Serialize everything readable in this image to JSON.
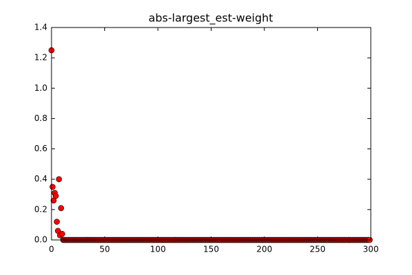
{
  "chart_data": {
    "type": "scatter",
    "title": "abs-largest_est-weight",
    "x": [
      0,
      1,
      2,
      3,
      4,
      5,
      6,
      7,
      8,
      9,
      10,
      11,
      12,
      13,
      14,
      15,
      16,
      17,
      18,
      19,
      20,
      21,
      22,
      23,
      24,
      25,
      26,
      27,
      28,
      29,
      30,
      31,
      32,
      33,
      34,
      35,
      36,
      37,
      38,
      39,
      40,
      41,
      42,
      43,
      44,
      45,
      46,
      47,
      48,
      49,
      50,
      51,
      52,
      53,
      54,
      55,
      56,
      57,
      58,
      59,
      60,
      61,
      62,
      63,
      64,
      65,
      66,
      67,
      68,
      69,
      70,
      71,
      72,
      73,
      74,
      75,
      76,
      77,
      78,
      79,
      80,
      81,
      82,
      83,
      84,
      85,
      86,
      87,
      88,
      89,
      90,
      91,
      92,
      93,
      94,
      95,
      96,
      97,
      98,
      99,
      100,
      101,
      102,
      103,
      104,
      105,
      106,
      107,
      108,
      109,
      110,
      111,
      112,
      113,
      114,
      115,
      116,
      117,
      118,
      119,
      120,
      121,
      122,
      123,
      124,
      125,
      126,
      127,
      128,
      129,
      130,
      131,
      132,
      133,
      134,
      135,
      136,
      137,
      138,
      139,
      140,
      141,
      142,
      143,
      144,
      145,
      146,
      147,
      148,
      149,
      150,
      151,
      152,
      153,
      154,
      155,
      156,
      157,
      158,
      159,
      160,
      161,
      162,
      163,
      164,
      165,
      166,
      167,
      168,
      169,
      170,
      171,
      172,
      173,
      174,
      175,
      176,
      177,
      178,
      179,
      180,
      181,
      182,
      183,
      184,
      185,
      186,
      187,
      188,
      189,
      190,
      191,
      192,
      193,
      194,
      195,
      196,
      197,
      198,
      199,
      200,
      201,
      202,
      203,
      204,
      205,
      206,
      207,
      208,
      209,
      210,
      211,
      212,
      213,
      214,
      215,
      216,
      217,
      218,
      219,
      220,
      221,
      222,
      223,
      224,
      225,
      226,
      227,
      228,
      229,
      230,
      231,
      232,
      233,
      234,
      235,
      236,
      237,
      238,
      239,
      240,
      241,
      242,
      243,
      244,
      245,
      246,
      247,
      248,
      249,
      250,
      251,
      252,
      253,
      254,
      255,
      256,
      257,
      258,
      259,
      260,
      261,
      262,
      263,
      264,
      265,
      266,
      267,
      268,
      269,
      270,
      271,
      272,
      273,
      274,
      275,
      276,
      277,
      278,
      279,
      280,
      281,
      282,
      283,
      284,
      285,
      286,
      287,
      288,
      289,
      290,
      291,
      292,
      293,
      294,
      295,
      296,
      297,
      298,
      299
    ],
    "values": [
      1.25,
      0.35,
      0.26,
      0.31,
      0.29,
      0.12,
      0.06,
      0.4,
      0.03,
      0.21,
      0.04,
      0,
      0,
      0,
      0,
      0,
      0,
      0,
      0,
      0,
      0,
      0,
      0,
      0,
      0,
      0,
      0,
      0,
      0,
      0,
      0,
      0,
      0,
      0,
      0,
      0,
      0,
      0,
      0,
      0,
      0,
      0,
      0,
      0,
      0,
      0,
      0,
      0,
      0,
      0,
      0,
      0,
      0,
      0,
      0,
      0,
      0,
      0,
      0,
      0,
      0,
      0,
      0,
      0,
      0,
      0,
      0,
      0,
      0,
      0,
      0,
      0,
      0,
      0,
      0,
      0,
      0,
      0,
      0,
      0,
      0,
      0,
      0,
      0,
      0,
      0,
      0,
      0,
      0,
      0,
      0,
      0,
      0,
      0,
      0,
      0,
      0,
      0,
      0,
      0,
      0,
      0,
      0,
      0,
      0,
      0,
      0,
      0,
      0,
      0,
      0,
      0,
      0,
      0,
      0,
      0,
      0,
      0,
      0,
      0,
      0,
      0,
      0,
      0,
      0,
      0,
      0,
      0,
      0,
      0,
      0,
      0,
      0,
      0,
      0,
      0,
      0,
      0,
      0,
      0,
      0,
      0,
      0,
      0,
      0,
      0,
      0,
      0,
      0,
      0,
      0,
      0,
      0,
      0,
      0,
      0,
      0,
      0,
      0,
      0,
      0,
      0,
      0,
      0,
      0,
      0,
      0,
      0,
      0,
      0,
      0,
      0,
      0,
      0,
      0,
      0,
      0,
      0,
      0,
      0,
      0,
      0,
      0,
      0,
      0,
      0,
      0,
      0,
      0,
      0,
      0,
      0,
      0,
      0,
      0,
      0,
      0,
      0,
      0,
      0,
      0,
      0,
      0,
      0,
      0,
      0,
      0,
      0,
      0,
      0,
      0,
      0,
      0,
      0,
      0,
      0,
      0,
      0,
      0,
      0,
      0,
      0,
      0,
      0,
      0,
      0,
      0,
      0,
      0,
      0,
      0,
      0,
      0,
      0,
      0,
      0,
      0,
      0,
      0,
      0,
      0,
      0,
      0,
      0,
      0,
      0,
      0,
      0,
      0,
      0,
      0,
      0,
      0,
      0,
      0,
      0,
      0,
      0,
      0,
      0,
      0,
      0,
      0,
      0,
      0,
      0,
      0,
      0,
      0,
      0,
      0,
      0,
      0,
      0,
      0,
      0,
      0,
      0,
      0,
      0,
      0,
      0,
      0,
      0,
      0,
      0,
      0,
      0,
      0,
      0,
      0,
      0,
      0,
      0,
      0,
      0,
      0,
      0,
      0,
      0
    ],
    "color": "#ff0000",
    "xlim": [
      0,
      300
    ],
    "xticks": [
      0,
      50,
      100,
      150,
      200,
      250,
      300
    ],
    "ylim": [
      0,
      1.4
    ],
    "yticks": [
      {
        "value": 0,
        "label": "0.0"
      },
      0.2,
      0.4,
      0.6,
      0.8,
      {
        "value": 1,
        "label": "1.0"
      },
      1.2,
      1.4
    ]
  }
}
